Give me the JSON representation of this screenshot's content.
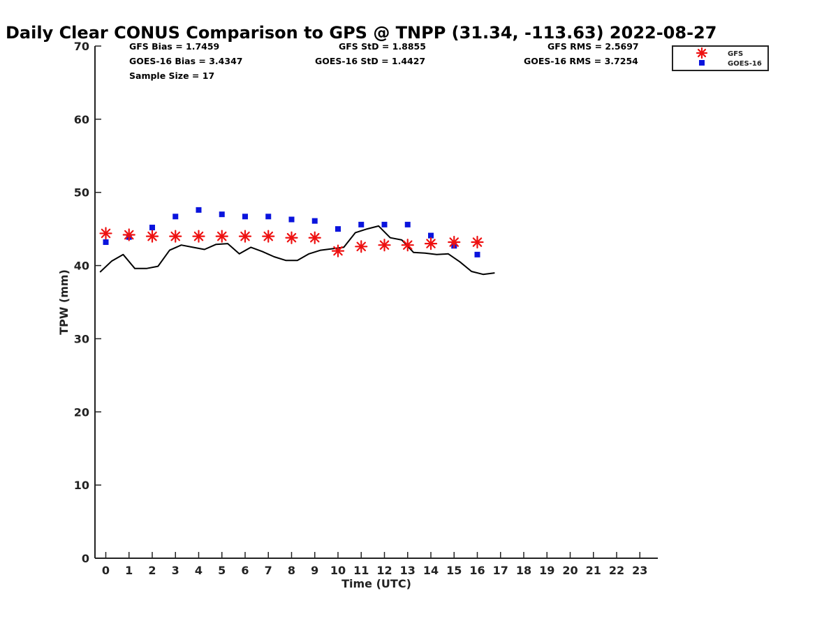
{
  "chart_data": {
    "type": "scatter",
    "title": "Daily Clear CONUS Comparison to GPS @ TNPP (31.34, -113.63) 2022-08-27",
    "xlabel": "Time (UTC)",
    "ylabel": "TPW (mm)",
    "xlim": [
      -0.5,
      23.7
    ],
    "ylim": [
      0,
      70
    ],
    "x_ticks": [
      "0",
      "1",
      "2",
      "3",
      "4",
      "5",
      "6",
      "7",
      "8",
      "9",
      "10",
      "11",
      "12",
      "13",
      "14",
      "15",
      "16",
      "17",
      "18",
      "19",
      "20",
      "21",
      "22",
      "23"
    ],
    "y_ticks": [
      "0",
      "10",
      "20",
      "30",
      "40",
      "50",
      "60",
      "70"
    ],
    "grid": false,
    "legend_position": "top-right",
    "stats": {
      "gfs_bias": "GFS Bias = 1.7459",
      "goes_bias": "GOES-16 Bias = 3.4347",
      "sample_size": "Sample Size = 17",
      "gfs_std": "GFS StD = 1.8855",
      "goes_std": "GOES-16 StD = 1.4427",
      "gfs_rms": "GFS RMS = 2.5697",
      "goes_rms": "GOES-16 RMS = 3.7254"
    },
    "series": [
      {
        "name": "GFS",
        "marker": "asterisk",
        "color": "#ee1111",
        "x": [
          0,
          1,
          2,
          3,
          4,
          5,
          6,
          7,
          8,
          9,
          10,
          11,
          12,
          13,
          14,
          15,
          16
        ],
        "y": [
          44.4,
          44.2,
          44.0,
          44.0,
          44.0,
          44.0,
          44.0,
          44.0,
          43.8,
          43.8,
          42.0,
          42.6,
          42.8,
          42.8,
          43.0,
          43.2,
          43.2
        ]
      },
      {
        "name": "GOES-16",
        "marker": "square",
        "color": "#0a14dd",
        "x": [
          0,
          1,
          2,
          3,
          4,
          5,
          6,
          7,
          8,
          9,
          10,
          11,
          12,
          13,
          14,
          15,
          16
        ],
        "y": [
          43.2,
          43.9,
          45.2,
          46.7,
          47.6,
          47.0,
          46.7,
          46.7,
          46.3,
          46.1,
          45.0,
          45.6,
          45.6,
          45.6,
          44.1,
          42.7,
          41.5
        ]
      },
      {
        "name": "GPS",
        "marker": "line",
        "color": "#000000",
        "x": [
          -0.25,
          0.25,
          0.75,
          1.25,
          1.75,
          2.25,
          2.75,
          3.25,
          3.75,
          4.25,
          4.75,
          5.25,
          5.75,
          6.25,
          6.75,
          7.25,
          7.75,
          8.25,
          8.75,
          9.25,
          9.75,
          10.25,
          10.75,
          11.25,
          11.75,
          12.25,
          12.75,
          13.25,
          13.75,
          14.25,
          14.75,
          15.25,
          15.75,
          16.25,
          16.75
        ],
        "y": [
          39.1,
          40.6,
          41.5,
          39.6,
          39.6,
          39.9,
          42.1,
          42.8,
          42.5,
          42.2,
          42.9,
          43.0,
          41.6,
          42.5,
          41.9,
          41.2,
          40.7,
          40.7,
          41.6,
          42.1,
          42.3,
          42.5,
          44.5,
          45.0,
          45.4,
          43.8,
          43.5,
          41.8,
          41.7,
          41.5,
          41.6,
          40.5,
          39.2,
          38.8,
          39.0
        ]
      }
    ]
  }
}
